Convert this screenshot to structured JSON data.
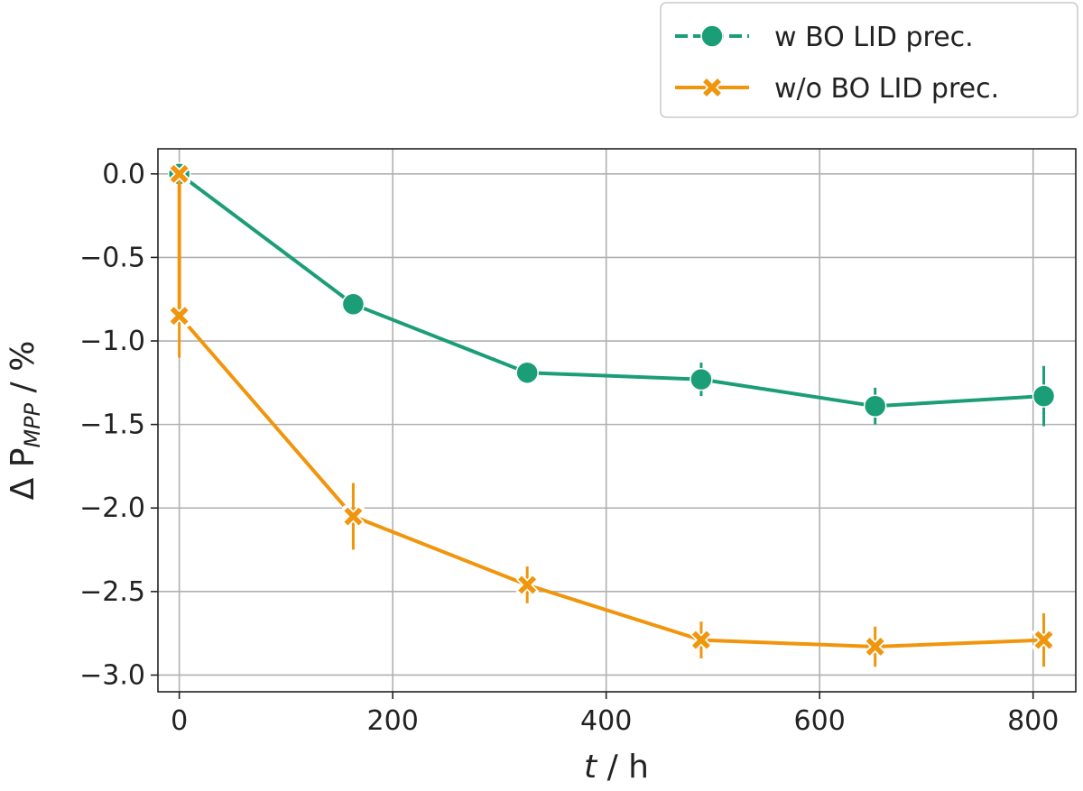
{
  "chart_data": {
    "type": "line",
    "xlabel": {
      "main": "t",
      "unit": " / h"
    },
    "ylabel": {
      "main": "Δ P",
      "sub": "MPP",
      "unit": " / %"
    },
    "xlim": [
      -20,
      840
    ],
    "ylim": [
      -3.1,
      0.15
    ],
    "xticks": [
      0,
      200,
      400,
      600,
      800
    ],
    "yticks": [
      0.0,
      -0.5,
      -1.0,
      -1.5,
      -2.0,
      -2.5,
      -3.0
    ],
    "xtick_labels": [
      "0",
      "200",
      "400",
      "600",
      "800"
    ],
    "ytick_labels": [
      "0.0",
      "−0.5",
      "−1.0",
      "−1.5",
      "−2.0",
      "−2.5",
      "−3.0"
    ],
    "grid": true,
    "legend_position": "top-right, outside plot area",
    "series": [
      {
        "name": "w BO LID prec.",
        "color": "#1b9e77",
        "marker": "circle",
        "x": [
          0,
          163,
          326,
          489,
          652,
          810
        ],
        "y": [
          0.0,
          -0.78,
          -1.19,
          -1.23,
          -1.39,
          -1.33
        ],
        "err": [
          0.02,
          0.03,
          0.03,
          0.1,
          0.11,
          0.18
        ]
      },
      {
        "name": "w/o BO LID prec.",
        "color": "#f0950c",
        "marker": "x",
        "x": [
          0,
          0,
          163,
          326,
          489,
          652,
          810
        ],
        "y": [
          0.0,
          -0.85,
          -2.05,
          -2.46,
          -2.79,
          -2.83,
          -2.79
        ],
        "err": [
          0.02,
          0.25,
          0.2,
          0.11,
          0.11,
          0.12,
          0.16
        ]
      }
    ]
  }
}
